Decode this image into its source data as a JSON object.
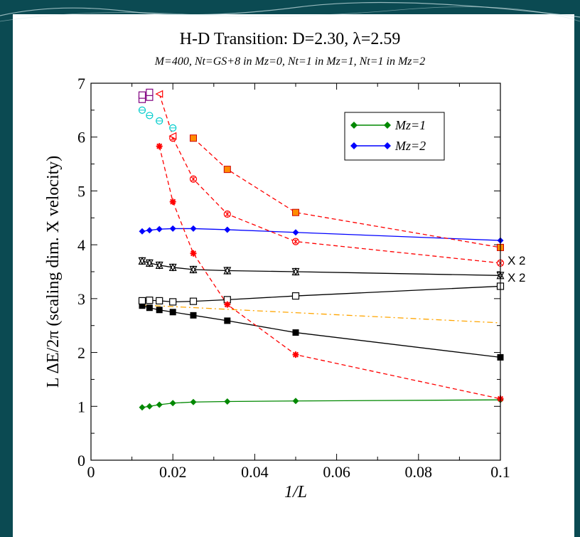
{
  "chart_data": {
    "type": "line",
    "title": "H-D Transition: D=2.30, λ=2.59",
    "subtitle": "M=400, Nt=GS+8 in Mz=0, Nt=1 in Mz=1, Nt=1 in Mz=2",
    "xlabel": "1/L",
    "ylabel": "L ΔE/2π (scaling dim. X velocity)",
    "xlim": [
      0,
      0.1
    ],
    "ylim": [
      0,
      7
    ],
    "x_ticks": [
      "0",
      "0.02",
      "0.04",
      "0.06",
      "0.08",
      "0.1"
    ],
    "y_ticks": [
      "0",
      "1",
      "2",
      "3",
      "4",
      "5",
      "6",
      "7"
    ],
    "legend_position": "top-right",
    "annotations": [
      "X 2",
      "X 2"
    ],
    "series": [
      {
        "name": "Mz=1",
        "color": "#008800",
        "marker": "diamond-filled",
        "dash": "solid",
        "x": [
          0.0125,
          0.0143,
          0.0167,
          0.02,
          0.025,
          0.0333,
          0.05,
          0.1
        ],
        "y": [
          0.98,
          1.0,
          1.03,
          1.06,
          1.08,
          1.09,
          1.1,
          1.12
        ]
      },
      {
        "name": "Mz=2",
        "color": "#0000ff",
        "marker": "diamond-filled",
        "dash": "solid",
        "x": [
          0.0125,
          0.0143,
          0.0167,
          0.02,
          0.025,
          0.0333,
          0.05,
          0.1
        ],
        "y": [
          4.25,
          4.27,
          4.29,
          4.3,
          4.3,
          4.28,
          4.23,
          4.08
        ]
      },
      {
        "color": "#000000",
        "marker": "square-filled",
        "dash": "solid",
        "x": [
          0.0125,
          0.0143,
          0.0167,
          0.02,
          0.025,
          0.0333,
          0.05,
          0.1
        ],
        "y": [
          2.87,
          2.83,
          2.79,
          2.75,
          2.69,
          2.59,
          2.37,
          1.91
        ]
      },
      {
        "color": "#000000",
        "marker": "square-open",
        "dash": "solid",
        "x": [
          0.0125,
          0.0143,
          0.0167,
          0.02,
          0.025,
          0.0333,
          0.05,
          0.1
        ],
        "y": [
          2.96,
          2.97,
          2.96,
          2.94,
          2.95,
          2.98,
          3.05,
          3.23
        ]
      },
      {
        "color": "#000000",
        "marker": "triangle-open",
        "dash": "solid",
        "x": [
          0.0125,
          0.0143,
          0.0167,
          0.02,
          0.025,
          0.0333,
          0.05,
          0.1
        ],
        "y": [
          3.7,
          3.66,
          3.62,
          3.58,
          3.54,
          3.52,
          3.5,
          3.43
        ]
      },
      {
        "color": "#ffa500",
        "marker": "none",
        "dash": "dashdot",
        "x": [
          0.0125,
          0.1
        ],
        "y": [
          2.88,
          2.55
        ]
      },
      {
        "color": "#ff0000",
        "marker": "star",
        "dash": "dashed",
        "x": [
          0.0167,
          0.02,
          0.025,
          0.0333,
          0.05,
          0.1
        ],
        "y": [
          5.83,
          4.8,
          3.84,
          2.89,
          1.96,
          1.14
        ]
      },
      {
        "color": "#ff0000",
        "marker": "circle-star",
        "dash": "dashed",
        "x": [
          0.02,
          0.025,
          0.0333,
          0.05,
          0.1
        ],
        "y": [
          5.98,
          5.22,
          4.57,
          4.06,
          3.66
        ]
      },
      {
        "color": "#ff0000",
        "marker": "square-orange",
        "dash": "dashed",
        "x": [
          0.025,
          0.0333,
          0.05,
          0.1
        ],
        "y": [
          5.98,
          5.4,
          4.6,
          3.95
        ]
      },
      {
        "color": "#ff0000",
        "marker": "triangle-left-open",
        "dash": "dashed",
        "x": [
          0.0167,
          0.02
        ],
        "y": [
          6.8,
          6.02
        ]
      },
      {
        "color": "#00cccc",
        "marker": "circle-open",
        "dash": "none",
        "x": [
          0.0125,
          0.0143,
          0.0167,
          0.02
        ],
        "y": [
          6.5,
          6.4,
          6.3,
          6.17
        ]
      },
      {
        "color": "#800080",
        "marker": "square-open",
        "dash": "none",
        "x": [
          0.0125,
          0.0125,
          0.0143,
          0.0143
        ],
        "y": [
          6.7,
          6.78,
          6.74,
          6.83
        ]
      }
    ]
  }
}
